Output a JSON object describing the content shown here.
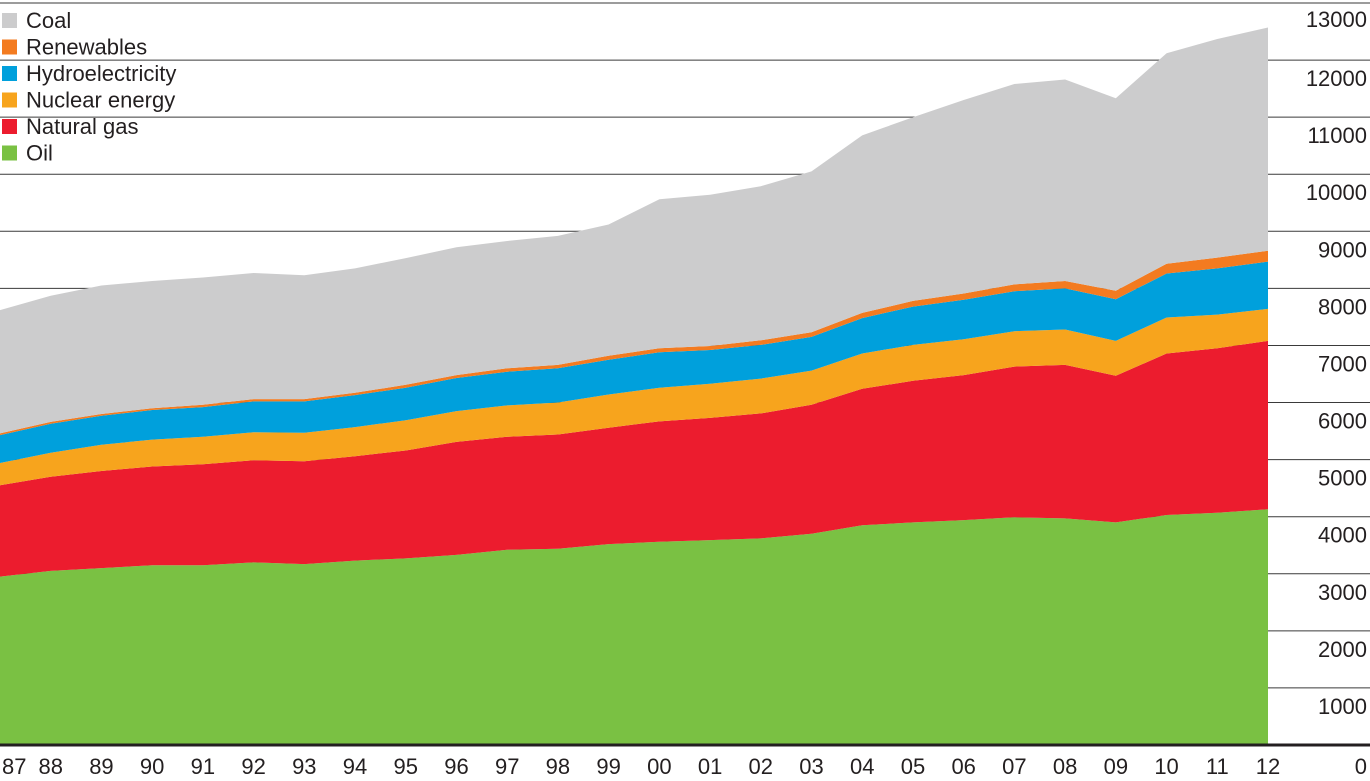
{
  "chart_data": {
    "type": "area",
    "stacked": true,
    "x": [
      "87",
      "88",
      "89",
      "90",
      "91",
      "92",
      "93",
      "94",
      "95",
      "96",
      "97",
      "98",
      "99",
      "00",
      "01",
      "02",
      "03",
      "04",
      "05",
      "06",
      "07",
      "08",
      "09",
      "10",
      "11",
      "12"
    ],
    "y_ticks": [
      "0",
      "1000",
      "2000",
      "3000",
      "4000",
      "5000",
      "6000",
      "7000",
      "8000",
      "9000",
      "10000",
      "11000",
      "12000",
      "13000"
    ],
    "ylim": [
      0,
      13000
    ],
    "y_axis_position": "right",
    "grid": true,
    "legend_position": "top-left",
    "series": [
      {
        "name": "Oil",
        "color": "#7ac143",
        "values": [
          2950,
          3050,
          3100,
          3150,
          3150,
          3200,
          3170,
          3230,
          3270,
          3330,
          3420,
          3440,
          3520,
          3560,
          3590,
          3620,
          3700,
          3850,
          3900,
          3940,
          3990,
          3970,
          3900,
          4030,
          4070,
          4130
        ]
      },
      {
        "name": "Natural gas",
        "color": "#ec1c2e",
        "values": [
          1600,
          1650,
          1700,
          1730,
          1770,
          1790,
          1800,
          1830,
          1890,
          1980,
          1980,
          2000,
          2040,
          2110,
          2140,
          2190,
          2260,
          2390,
          2480,
          2540,
          2640,
          2690,
          2570,
          2830,
          2880,
          2950
        ]
      },
      {
        "name": "Nuclear energy",
        "color": "#f7a41d",
        "values": [
          390,
          420,
          460,
          470,
          480,
          490,
          500,
          510,
          530,
          540,
          550,
          560,
          580,
          590,
          600,
          610,
          600,
          620,
          630,
          630,
          620,
          620,
          610,
          630,
          590,
          560
        ]
      },
      {
        "name": "Hydroelectricity",
        "color": "#00a0dc",
        "values": [
          490,
          510,
          510,
          520,
          520,
          540,
          550,
          560,
          570,
          580,
          590,
          600,
          610,
          620,
          590,
          590,
          590,
          620,
          670,
          690,
          700,
          720,
          730,
          770,
          810,
          830
        ]
      },
      {
        "name": "Renewables",
        "color": "#f37b20",
        "values": [
          30,
          30,
          30,
          30,
          40,
          40,
          40,
          40,
          50,
          50,
          60,
          60,
          70,
          70,
          70,
          80,
          80,
          90,
          100,
          110,
          120,
          130,
          150,
          170,
          190,
          190
        ]
      },
      {
        "name": "Coal",
        "color": "#cccccd",
        "values": [
          2160,
          2210,
          2250,
          2230,
          2230,
          2210,
          2170,
          2180,
          2220,
          2240,
          2230,
          2260,
          2300,
          2610,
          2650,
          2700,
          2820,
          3110,
          3220,
          3390,
          3510,
          3530,
          3370,
          3690,
          3830,
          3910
        ]
      }
    ]
  }
}
